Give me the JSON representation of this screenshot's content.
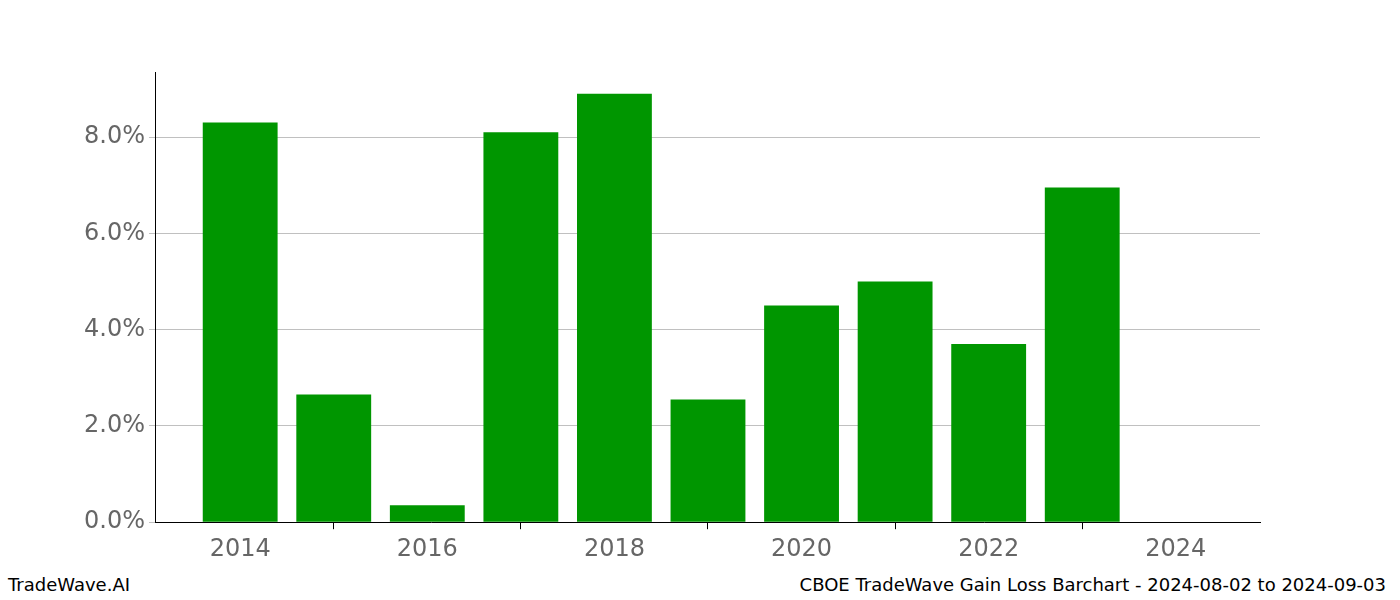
{
  "chart_data": {
    "type": "bar",
    "annotations": [
      "TradeWave.AI",
      "CBOE TradeWave Gain Loss Barchart - 2024-08-02 to 2024-09-03"
    ],
    "x": [
      2014,
      2015,
      2016,
      2017,
      2018,
      2019,
      2020,
      2021,
      2022,
      2023
    ],
    "values": [
      8.3,
      2.65,
      0.35,
      8.1,
      8.9,
      2.55,
      4.5,
      5.0,
      3.7,
      6.95
    ],
    "color": "#009600",
    "xlim": [
      2013.1,
      2024.9
    ],
    "xticks": [
      2014,
      2016,
      2018,
      2020,
      2022,
      2024
    ],
    "ylim": [
      0,
      9.35
    ],
    "yticks": [
      {
        "value": 0,
        "label": "0.0%"
      },
      {
        "value": 2,
        "label": "2.0%"
      },
      {
        "value": 4,
        "label": "4.0%"
      },
      {
        "value": 6,
        "label": "6.0%"
      },
      {
        "value": 8,
        "label": "8.0%"
      }
    ],
    "grid": true
  }
}
